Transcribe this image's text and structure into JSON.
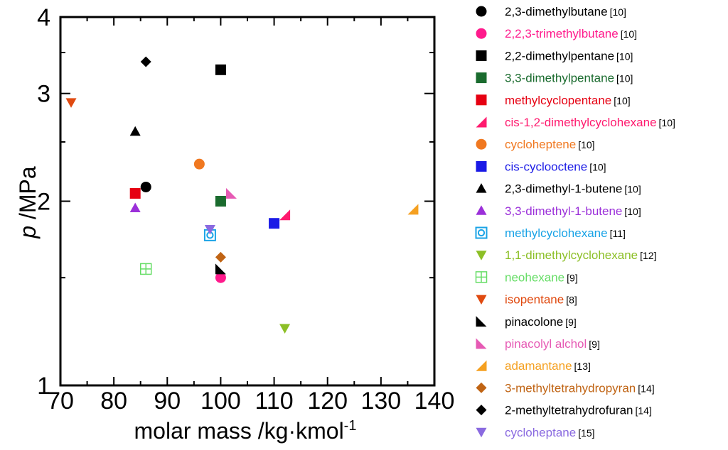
{
  "chart_data": {
    "type": "scatter",
    "xlabel": "molar mass /kg·kmol",
    "xlabel_sup": "-1",
    "ylabel_italic": "p",
    "ylabel": " /MPa",
    "xlim": [
      70,
      140
    ],
    "ylim": [
      1,
      4
    ],
    "y_scale": "log",
    "x_ticks": [
      70,
      80,
      90,
      100,
      110,
      120,
      130,
      140
    ],
    "y_ticks": [
      1,
      2,
      3,
      4
    ],
    "grid": false,
    "legend_position": "right",
    "series": [
      {
        "name": "2,3-dimethylbutane",
        "ref": "[10]",
        "color": "#000000",
        "marker": "circle",
        "filled": true,
        "points": [
          [
            86,
            2.11
          ]
        ]
      },
      {
        "name": "2,2,3-trimethylbutane",
        "ref": "[10]",
        "color": "#ff1a8c",
        "marker": "circle",
        "filled": true,
        "points": [
          [
            100,
            1.5
          ]
        ]
      },
      {
        "name": "2,2-dimethylpentane",
        "ref": "[10]",
        "color": "#000000",
        "marker": "square",
        "filled": true,
        "points": [
          [
            100,
            3.28
          ]
        ]
      },
      {
        "name": "3,3-dimethylpentane",
        "ref": "[10]",
        "color": "#1a6b2e",
        "marker": "square",
        "filled": true,
        "points": [
          [
            100,
            2.0
          ]
        ]
      },
      {
        "name": "methylcyclopentane",
        "ref": "[10]",
        "color": "#e60012",
        "marker": "square",
        "filled": true,
        "points": [
          [
            84,
            2.06
          ]
        ]
      },
      {
        "name": "cis-1,2-dimethylcyclohexane",
        "ref": "[10]",
        "color": "#ff1a6e",
        "marker": "wedge-ur",
        "filled": true,
        "points": [
          [
            112,
            1.9
          ]
        ]
      },
      {
        "name": "cycloheptene",
        "ref": "[10]",
        "color": "#f07820",
        "marker": "circle",
        "filled": true,
        "points": [
          [
            96,
            2.3
          ]
        ]
      },
      {
        "name": "cis-cyclooctene",
        "ref": "[10]",
        "color": "#1a1ae6",
        "marker": "square",
        "filled": true,
        "points": [
          [
            110,
            1.84
          ]
        ]
      },
      {
        "name": "2,3-dimethyl-1-butene",
        "ref": "[10]",
        "color": "#000000",
        "marker": "triangle-up",
        "filled": true,
        "points": [
          [
            84,
            2.6
          ]
        ]
      },
      {
        "name": "3,3-dimethyl-1-butene",
        "ref": "[10]",
        "color": "#9b30d9",
        "marker": "triangle-up",
        "filled": true,
        "points": [
          [
            84,
            1.95
          ]
        ]
      },
      {
        "name": "methylcyclohexane",
        "ref": "[11]",
        "color": "#1aa3e6",
        "marker": "open-square-circle",
        "filled": false,
        "points": [
          [
            98,
            1.76
          ]
        ]
      },
      {
        "name": "1,1-dimethylcyclohexane",
        "ref": "[12]",
        "color": "#8cbf26",
        "marker": "triangle-down",
        "filled": true,
        "points": [
          [
            112,
            1.24
          ]
        ]
      },
      {
        "name": "neohexane",
        "ref": "[9]",
        "color": "#66dd66",
        "marker": "open-square-cross",
        "filled": false,
        "points": [
          [
            86,
            1.55
          ]
        ]
      },
      {
        "name": "isopentane",
        "ref": "[8]",
        "color": "#e04a10",
        "marker": "triangle-down",
        "filled": true,
        "points": [
          [
            72,
            2.9
          ]
        ]
      },
      {
        "name": "pinacolone",
        "ref": "[9]",
        "color": "#000000",
        "marker": "wedge-ll",
        "filled": true,
        "points": [
          [
            100,
            1.55
          ]
        ]
      },
      {
        "name": "pinacolyl alchol",
        "ref": "[9]",
        "color": "#e65ab4",
        "marker": "wedge-ll",
        "filled": true,
        "points": [
          [
            102,
            2.06
          ]
        ]
      },
      {
        "name": "adamantane",
        "ref": "[13]",
        "color": "#f5a020",
        "marker": "wedge-ur",
        "filled": true,
        "points": [
          [
            136,
            1.94
          ]
        ]
      },
      {
        "name": "3-methyltetrahydropyran",
        "ref": "[14]",
        "color": "#c06414",
        "marker": "diamond",
        "filled": true,
        "points": [
          [
            100,
            1.62
          ]
        ]
      },
      {
        "name": "2-methyltetrahydrofuran",
        "ref": "[14]",
        "color": "#000000",
        "marker": "diamond",
        "filled": true,
        "points": [
          [
            86,
            3.38
          ]
        ]
      },
      {
        "name": "cycloheptane",
        "ref": "[15]",
        "color": "#8a6ae0",
        "marker": "triangle-down",
        "filled": true,
        "points": [
          [
            98,
            1.8
          ]
        ]
      }
    ]
  }
}
